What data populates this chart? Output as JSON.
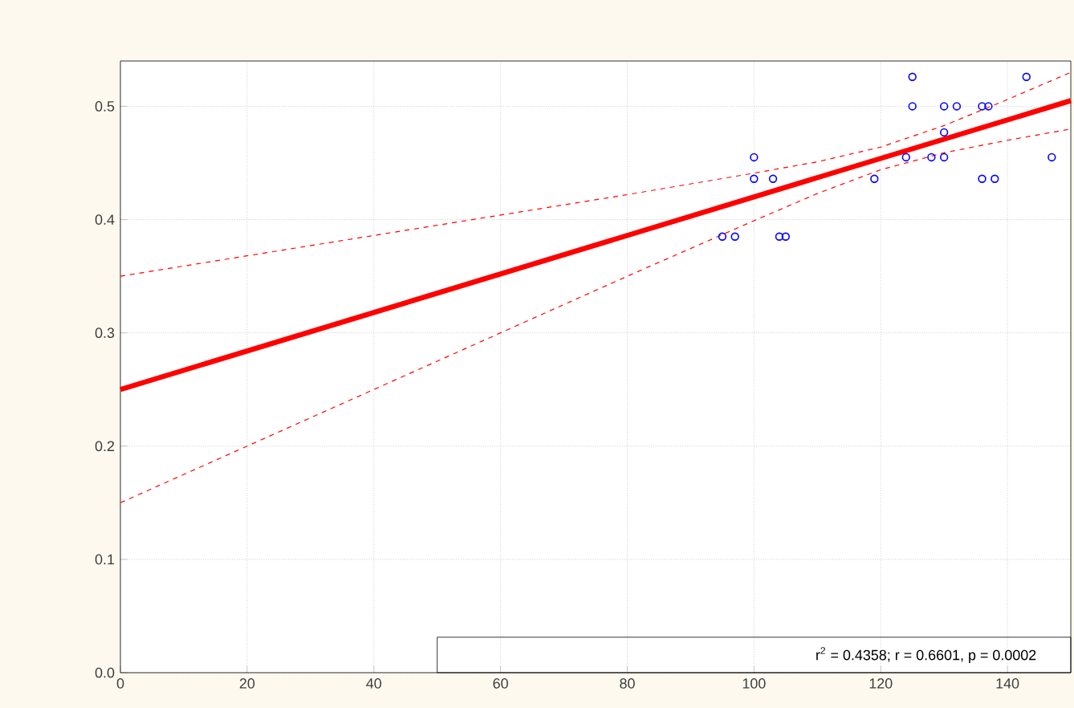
{
  "chart_data": {
    "type": "scatter",
    "xlim": [
      0,
      150
    ],
    "ylim": [
      0,
      0.54
    ],
    "xticks": [
      0,
      20,
      40,
      60,
      80,
      100,
      120,
      140
    ],
    "yticks": [
      {
        "value": 0,
        "label": "0.0"
      },
      0.1,
      0.2,
      0.3,
      0.4,
      0.5
    ],
    "grid": true,
    "annotations": [
      "r$^{2}$ = 0.4358;  r = 0.6601, p = 0.0002"
    ],
    "series": [
      {
        "type": "scatter",
        "marker": "circle",
        "color": "#0000ff",
        "x": [
          95,
          97,
          100,
          100,
          103,
          104,
          105,
          119,
          124,
          125,
          125,
          128,
          130,
          130,
          130,
          132,
          136,
          137,
          136,
          138,
          143,
          147
        ],
        "values": [
          0.385,
          0.385,
          0.455,
          0.436,
          0.436,
          0.385,
          0.385,
          0.436,
          0.455,
          0.526,
          0.5,
          0.455,
          0.455,
          0.477,
          0.5,
          0.5,
          0.5,
          0.5,
          0.436,
          0.436,
          0.526,
          0.455
        ]
      },
      {
        "type": "line",
        "line_style": "solid",
        "color": "#ff0000",
        "x": [
          0,
          150
        ],
        "values": [
          0.25,
          0.505
        ]
      },
      {
        "type": "line",
        "line_style": "dashed",
        "color": "#ff0000",
        "x": [
          0,
          20,
          40,
          60,
          80,
          100,
          110,
          120,
          130,
          140,
          150
        ],
        "values": [
          0.35,
          0.368,
          0.386,
          0.404,
          0.422,
          0.441,
          0.451,
          0.464,
          0.483,
          0.506,
          0.53
        ]
      },
      {
        "type": "line",
        "line_style": "dashed",
        "color": "#ff0000",
        "x": [
          0,
          20,
          40,
          60,
          80,
          100,
          110,
          120,
          130,
          140,
          150
        ],
        "values": [
          0.15,
          0.2,
          0.25,
          0.3,
          0.35,
          0.399,
          0.423,
          0.444,
          0.459,
          0.47,
          0.48
        ]
      }
    ]
  }
}
